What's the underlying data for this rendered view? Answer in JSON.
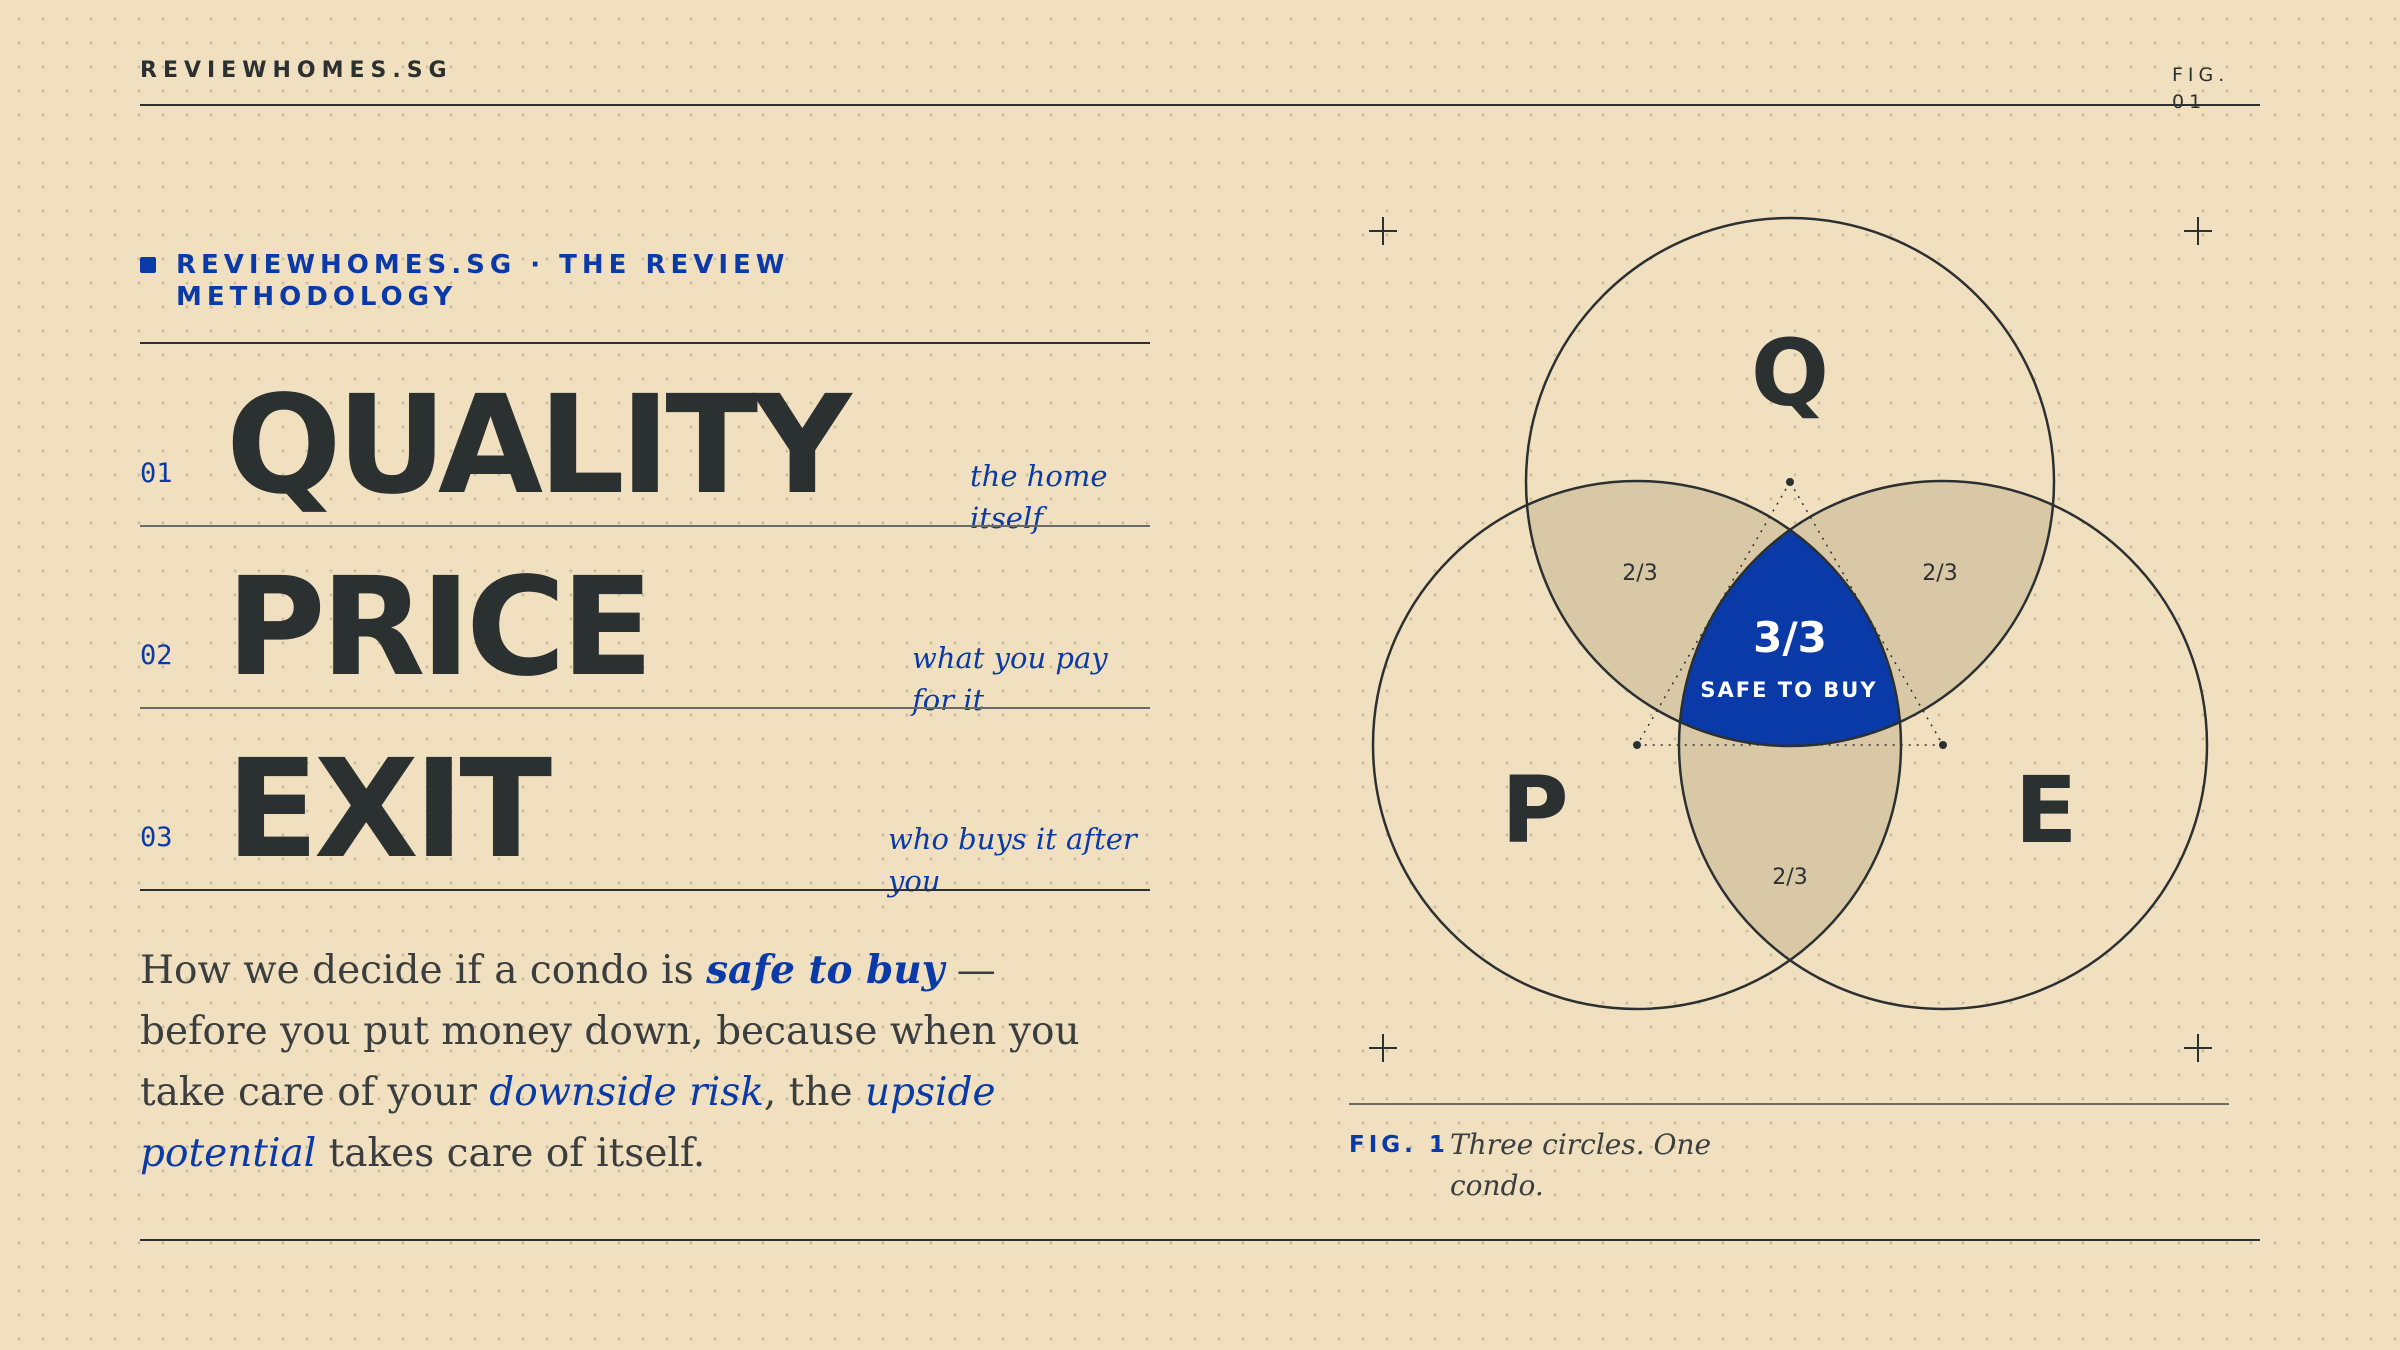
{
  "header": {
    "brand": "REVIEWHOMES.SG",
    "fig_label": "FIG. 01"
  },
  "kicker": "REVIEWHOMES.SG · THE REVIEW METHODOLOGY",
  "pillars": [
    {
      "num": "01",
      "word": "QUALITY",
      "note": "the home itself"
    },
    {
      "num": "02",
      "word": "PRICE",
      "note": "what you pay for it"
    },
    {
      "num": "03",
      "word": "EXIT",
      "note": "who buys it after you"
    }
  ],
  "body": {
    "part1": "How we decide if a condo is ",
    "em1": "safe to buy",
    "part2": " — before you put money down, because when you take care of your ",
    "em2": "downside risk",
    "part3": ", the ",
    "em3": "upside potential",
    "part4": " takes care of itself."
  },
  "diagram": {
    "circle_labels": {
      "top": "Q",
      "left": "P",
      "right": "E"
    },
    "pair_overlap_label": "2/3",
    "center": {
      "score": "3/3",
      "label": "SAFE TO BUY"
    },
    "colors": {
      "accent": "#0a3aa8",
      "overlap": "#d9c8a6",
      "ink": "#2b3031",
      "background": "#f1e0c0"
    }
  },
  "figure_caption": {
    "label": "FIG. 1",
    "text": "Three circles. One condo."
  }
}
